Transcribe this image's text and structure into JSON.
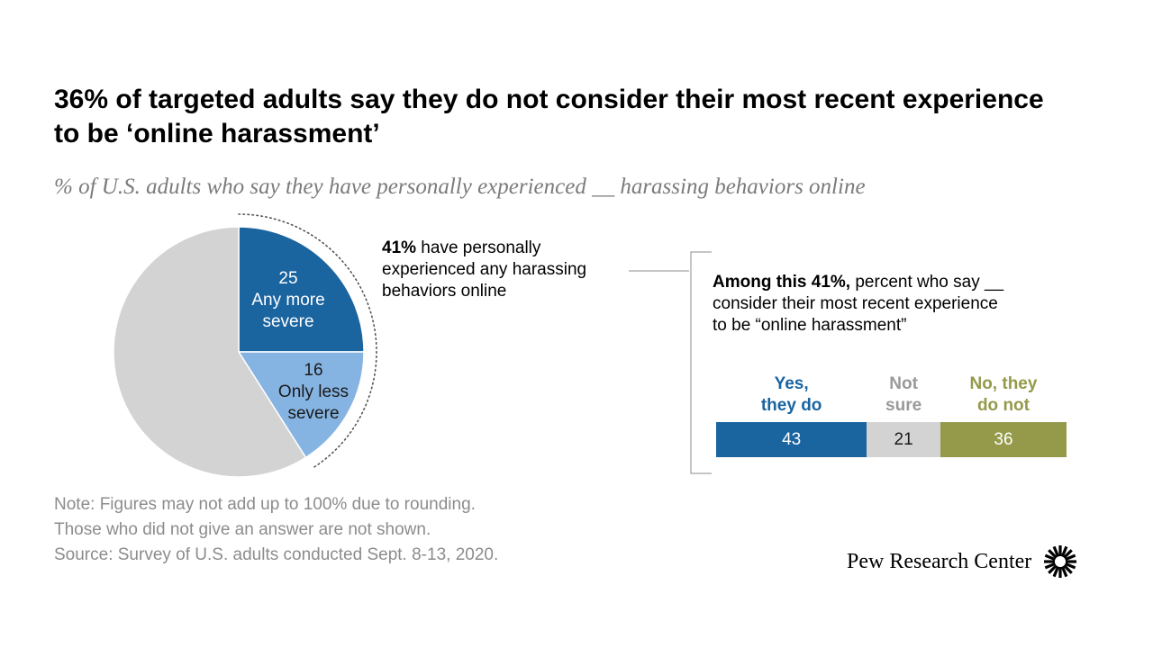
{
  "title": "36% of targeted adults say they do not consider their most recent experience to be ‘online harassment’",
  "subtitle": "% of U.S. adults who say they have personally experienced __ harassing behaviors online",
  "chart_data": [
    {
      "type": "pie",
      "slices": [
        {
          "label": "Any more severe",
          "value": 25,
          "color": "#1a64a0"
        },
        {
          "label": "Only less severe",
          "value": 16,
          "color": "#86b4e2"
        },
        {
          "label": "",
          "value": 59,
          "color": "#d3d3d3"
        }
      ],
      "slice_labels": [
        {
          "value": "25",
          "line1": "Any more",
          "line2": "severe"
        },
        {
          "value": "16",
          "line1": "Only less",
          "line2": "severe"
        }
      ],
      "callout": {
        "bold": "41%",
        "line1_rest": " have personally",
        "line2": "experienced any harassing",
        "line3": "behaviors online"
      }
    },
    {
      "type": "bar",
      "orientation": "horizontal-stacked",
      "heading": {
        "bold": "Among this 41%,",
        "line1_rest": " percent who say __",
        "line2": "consider their most recent experience",
        "line3": "to be “online harassment”"
      },
      "series": [
        {
          "name": "Yes, they do",
          "line1": "Yes,",
          "line2": "they do",
          "value": 43,
          "color": "#1a64a0",
          "text_color": "#ffffff"
        },
        {
          "name": "Not sure",
          "line1": "Not",
          "line2": "sure",
          "value": 21,
          "color": "#d3d3d3",
          "text_color": "#1a1a1a",
          "label_color": "#999999"
        },
        {
          "name": "No, they do not",
          "line1": "No, they",
          "line2": "do not",
          "value": 36,
          "color": "#949a4a",
          "text_color": "#ffffff"
        }
      ],
      "total": 100
    }
  ],
  "notes": {
    "line1": "Note: Figures may not add up to 100% due to rounding.",
    "line2": "Those who did not give an answer are not shown.",
    "line3": "Source: Survey of U.S. adults conducted Sept. 8-13, 2020."
  },
  "logo": {
    "text": "Pew Research Center",
    "icon": "pew-sunburst-icon"
  }
}
